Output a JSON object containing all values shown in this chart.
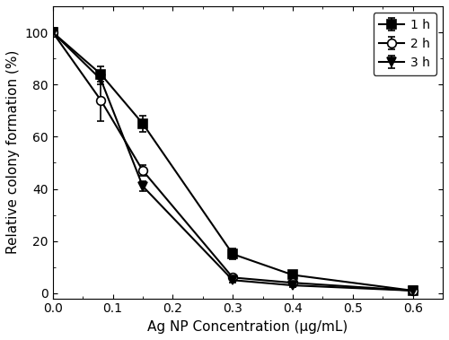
{
  "series": [
    {
      "label": "1 h",
      "x": [
        0.0,
        0.08,
        0.15,
        0.3,
        0.4,
        0.6
      ],
      "y": [
        100,
        84,
        65,
        15,
        7,
        1
      ],
      "yerr": [
        0,
        3,
        3,
        2,
        1,
        0
      ],
      "marker": "s",
      "fillstyle": "full",
      "color": "black",
      "linestyle": "-"
    },
    {
      "label": "2 h",
      "x": [
        0.0,
        0.08,
        0.15,
        0.3,
        0.4,
        0.6
      ],
      "y": [
        100,
        74,
        47,
        6,
        4,
        1
      ],
      "yerr": [
        0,
        8,
        2,
        1,
        0.5,
        0
      ],
      "marker": "o",
      "fillstyle": "none",
      "color": "black",
      "linestyle": "-"
    },
    {
      "label": "3 h",
      "x": [
        0.0,
        0.08,
        0.15,
        0.3,
        0.4,
        0.6
      ],
      "y": [
        100,
        82,
        41,
        5,
        3,
        1
      ],
      "yerr": [
        0,
        2,
        2,
        1,
        0.5,
        0
      ],
      "marker": "v",
      "fillstyle": "full",
      "color": "black",
      "linestyle": "-"
    }
  ],
  "xlabel": "Ag NP Concentration (μg/mL)",
  "ylabel": "Relative colony formation (%)",
  "xlim": [
    0.0,
    0.65
  ],
  "ylim": [
    -2,
    110
  ],
  "xticks": [
    0.0,
    0.1,
    0.2,
    0.3,
    0.4,
    0.5,
    0.6
  ],
  "yticks": [
    0,
    20,
    40,
    60,
    80,
    100
  ],
  "legend_loc": "upper right",
  "background_color": "#ffffff",
  "figure_width": 5.0,
  "figure_height": 3.79,
  "dpi": 100
}
